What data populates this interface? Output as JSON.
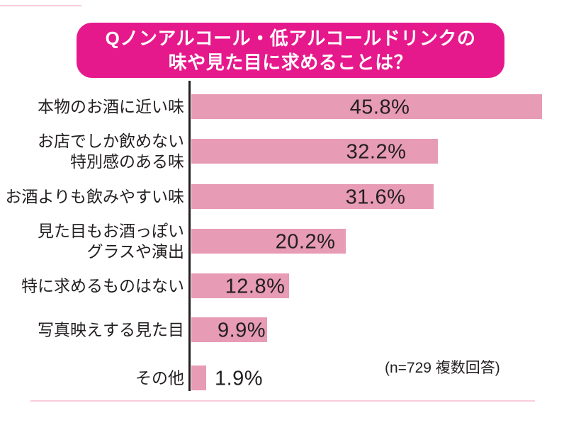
{
  "title": {
    "line1": "Qノンアルコール・低アルコールドリンクの",
    "line2": "味や見た目に求めることは？"
  },
  "note": "(n=729 複数回答)",
  "colors": {
    "title_bg": "#e6198c",
    "title_text": "#ffffff",
    "bar": "#e79bb5",
    "axis": "#231f20",
    "text": "#231f20",
    "divider": "#f9ccd9"
  },
  "chart_data": {
    "type": "bar",
    "orientation": "horizontal",
    "title": "Qノンアルコール・低アルコールドリンクの味や見た目に求めることは？",
    "unit": "%",
    "xlim": [
      0,
      50
    ],
    "grid": false,
    "legend": "none",
    "sample_note": "(n=729 複数回答)",
    "categories": [
      "本物のお酒に近い味",
      "お店でしか飲めない特別感のある味",
      "お酒よりも飲みやすい味",
      "見た目もお酒っぽいグラスや演出",
      "特に求めるものはない",
      "写真映えする見た目",
      "その他"
    ],
    "category_lines": [
      [
        "本物のお酒に近い味"
      ],
      [
        "お店でしか飲めない",
        "特別感のある味"
      ],
      [
        "お酒よりも飲みやすい味"
      ],
      [
        "見た目もお酒っぽい",
        "グラスや演出"
      ],
      [
        "特に求めるものはない"
      ],
      [
        "写真映えする見た目"
      ],
      [
        "その他"
      ]
    ],
    "values": [
      45.8,
      32.2,
      31.6,
      20.2,
      12.8,
      9.9,
      1.9
    ],
    "value_labels": [
      "45.8%",
      "32.2%",
      "31.6%",
      "20.2%",
      "12.8%",
      "9.9%",
      "1.9%"
    ]
  }
}
